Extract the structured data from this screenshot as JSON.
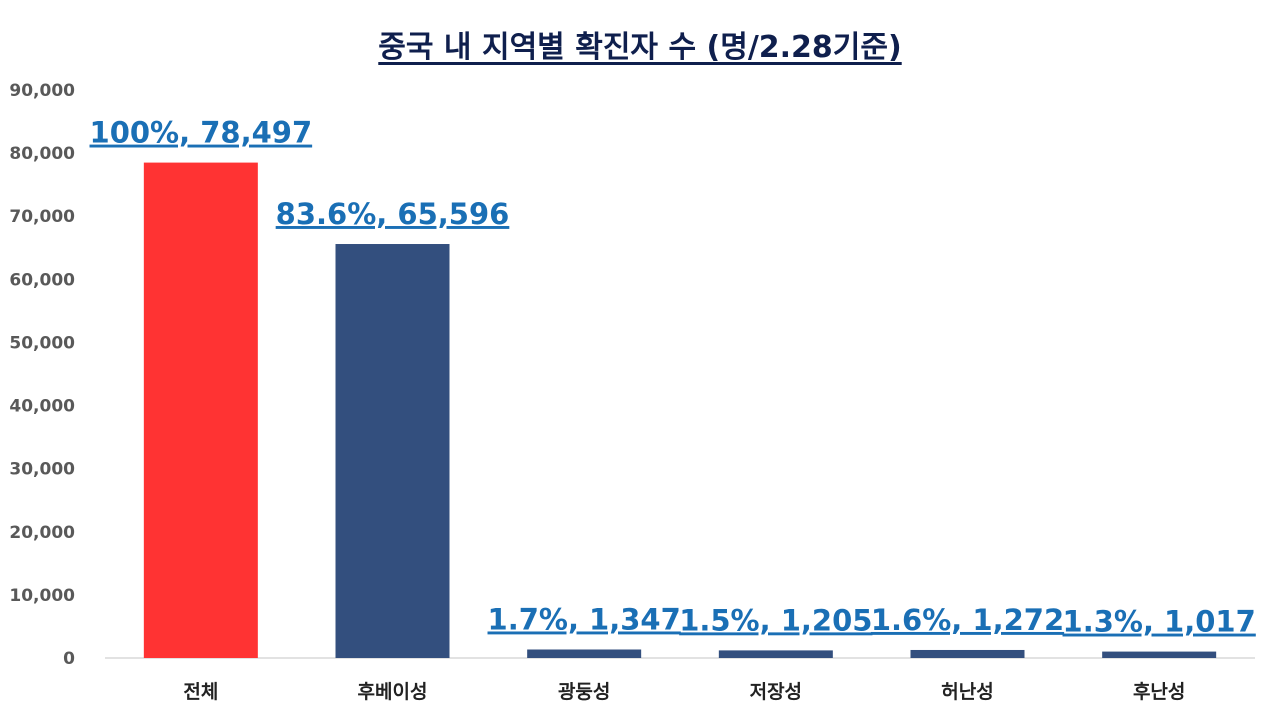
{
  "chart_data": {
    "type": "bar",
    "title": "중국 내 지역별 확진자 수 (명/2.28기준)",
    "categories": [
      "전체",
      "후베이성",
      "광둥성",
      "저장성",
      "허난성",
      "후난성"
    ],
    "values": [
      78497,
      65596,
      1347,
      1205,
      1272,
      1017
    ],
    "data_labels": [
      "100%, 78,497",
      "83.6%, 65,596",
      "1.7%, 1,347",
      "1.5%, 1,205",
      "1.6%, 1,272",
      "1.3%, 1,017"
    ],
    "bar_colors": [
      "#ff3333",
      "#334f7e",
      "#334f7e",
      "#334f7e",
      "#334f7e",
      "#334f7e"
    ],
    "label_color": "#1a6fb5",
    "ylim": [
      0,
      90000
    ],
    "yticks": [
      0,
      10000,
      20000,
      30000,
      40000,
      50000,
      60000,
      70000,
      80000,
      90000
    ],
    "ytick_labels": [
      "0",
      "10,000",
      "20,000",
      "30,000",
      "40,000",
      "50,000",
      "60,000",
      "70,000",
      "80,000",
      "90,000"
    ],
    "xlabel": "",
    "ylabel": "",
    "grid": false,
    "legend": "none"
  }
}
